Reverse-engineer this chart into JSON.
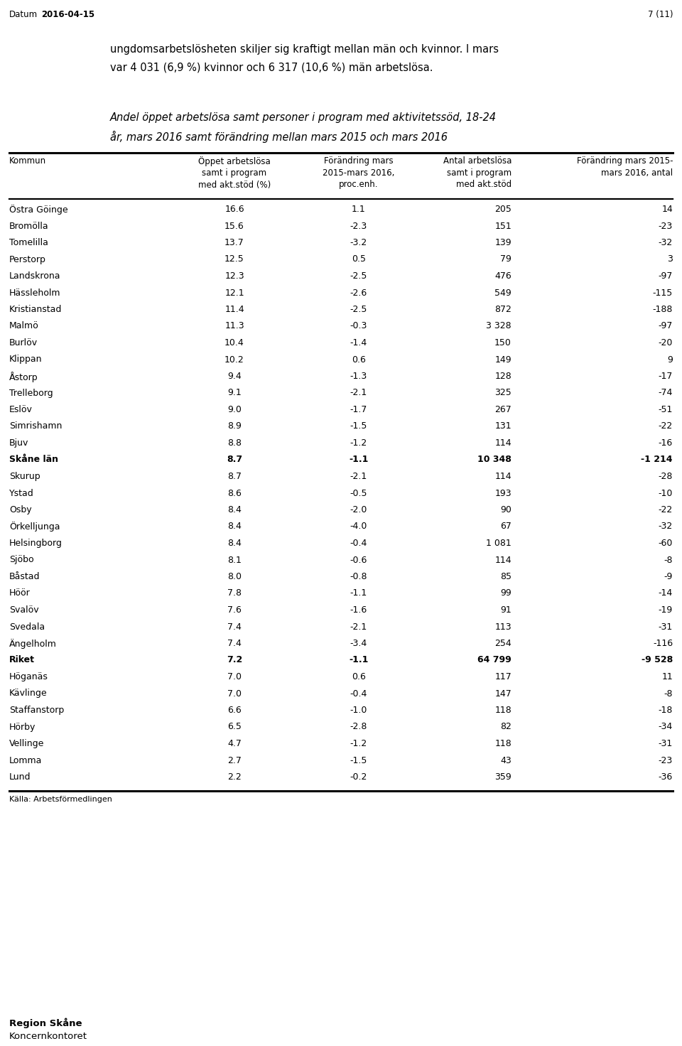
{
  "date_label": "Datum",
  "date_value": "2016-04-15",
  "page_number": "7 (11)",
  "intro_text_line1": "ungdomsarbetslösheten skiljer sig kraftigt mellan män och kvinnor. I mars",
  "intro_text_line2": "var 4 031 (6,9 %) kvinnor och 6 317 (10,6 %) män arbetslösa.",
  "table_title_line1": "Andel öppet arbetslösa samt personer i program med aktivitetssöd, 18-24",
  "table_title_line2": "år, mars 2016 samt förändring mellan mars 2015 och mars 2016",
  "col0_header": "Kommun",
  "col1_header": "Öppet arbetslösa\nsamt i program\nmed akt.stöd (%)",
  "col2_header": "Förändring mars\n2015-mars 2016,\nproc.enh.",
  "col3_header": "Antal arbetslösa\nsamt i program\nmed akt.stöd",
  "col4_header": "Förändring mars 2015-\nmars 2016, antal",
  "rows": [
    {
      "kommun": "Östra Göinge",
      "stod": "16.6",
      "fp": "1.1",
      "antal": "205",
      "fa": "14",
      "bold": false
    },
    {
      "kommun": "Bromölla",
      "stod": "15.6",
      "fp": "-2.3",
      "antal": "151",
      "fa": "-23",
      "bold": false
    },
    {
      "kommun": "Tomelilla",
      "stod": "13.7",
      "fp": "-3.2",
      "antal": "139",
      "fa": "-32",
      "bold": false
    },
    {
      "kommun": "Perstorp",
      "stod": "12.5",
      "fp": "0.5",
      "antal": "79",
      "fa": "3",
      "bold": false
    },
    {
      "kommun": "Landskrona",
      "stod": "12.3",
      "fp": "-2.5",
      "antal": "476",
      "fa": "-97",
      "bold": false
    },
    {
      "kommun": "Hässleholm",
      "stod": "12.1",
      "fp": "-2.6",
      "antal": "549",
      "fa": "-115",
      "bold": false
    },
    {
      "kommun": "Kristianstad",
      "stod": "11.4",
      "fp": "-2.5",
      "antal": "872",
      "fa": "-188",
      "bold": false
    },
    {
      "kommun": "Malmö",
      "stod": "11.3",
      "fp": "-0.3",
      "antal": "3 328",
      "fa": "-97",
      "bold": false
    },
    {
      "kommun": "Burlöv",
      "stod": "10.4",
      "fp": "-1.4",
      "antal": "150",
      "fa": "-20",
      "bold": false
    },
    {
      "kommun": "Klippan",
      "stod": "10.2",
      "fp": "0.6",
      "antal": "149",
      "fa": "9",
      "bold": false
    },
    {
      "kommun": "Åstorp",
      "stod": "9.4",
      "fp": "-1.3",
      "antal": "128",
      "fa": "-17",
      "bold": false
    },
    {
      "kommun": "Trelleborg",
      "stod": "9.1",
      "fp": "-2.1",
      "antal": "325",
      "fa": "-74",
      "bold": false
    },
    {
      "kommun": "Eslöv",
      "stod": "9.0",
      "fp": "-1.7",
      "antal": "267",
      "fa": "-51",
      "bold": false
    },
    {
      "kommun": "Simrishamn",
      "stod": "8.9",
      "fp": "-1.5",
      "antal": "131",
      "fa": "-22",
      "bold": false
    },
    {
      "kommun": "Bjuv",
      "stod": "8.8",
      "fp": "-1.2",
      "antal": "114",
      "fa": "-16",
      "bold": false
    },
    {
      "kommun": "Skåne län",
      "stod": "8.7",
      "fp": "-1.1",
      "antal": "10 348",
      "fa": "-1 214",
      "bold": true
    },
    {
      "kommun": "Skurup",
      "stod": "8.7",
      "fp": "-2.1",
      "antal": "114",
      "fa": "-28",
      "bold": false
    },
    {
      "kommun": "Ystad",
      "stod": "8.6",
      "fp": "-0.5",
      "antal": "193",
      "fa": "-10",
      "bold": false
    },
    {
      "kommun": "Osby",
      "stod": "8.4",
      "fp": "-2.0",
      "antal": "90",
      "fa": "-22",
      "bold": false
    },
    {
      "kommun": "Örkelljunga",
      "stod": "8.4",
      "fp": "-4.0",
      "antal": "67",
      "fa": "-32",
      "bold": false
    },
    {
      "kommun": "Helsingborg",
      "stod": "8.4",
      "fp": "-0.4",
      "antal": "1 081",
      "fa": "-60",
      "bold": false
    },
    {
      "kommun": "Sjöbo",
      "stod": "8.1",
      "fp": "-0.6",
      "antal": "114",
      "fa": "-8",
      "bold": false
    },
    {
      "kommun": "Båstad",
      "stod": "8.0",
      "fp": "-0.8",
      "antal": "85",
      "fa": "-9",
      "bold": false
    },
    {
      "kommun": "Höör",
      "stod": "7.8",
      "fp": "-1.1",
      "antal": "99",
      "fa": "-14",
      "bold": false
    },
    {
      "kommun": "Svalöv",
      "stod": "7.6",
      "fp": "-1.6",
      "antal": "91",
      "fa": "-19",
      "bold": false
    },
    {
      "kommun": "Svedala",
      "stod": "7.4",
      "fp": "-2.1",
      "antal": "113",
      "fa": "-31",
      "bold": false
    },
    {
      "kommun": "Ängelholm",
      "stod": "7.4",
      "fp": "-3.4",
      "antal": "254",
      "fa": "-116",
      "bold": false
    },
    {
      "kommun": "Riket",
      "stod": "7.2",
      "fp": "-1.1",
      "antal": "64 799",
      "fa": "-9 528",
      "bold": true
    },
    {
      "kommun": "Höganäs",
      "stod": "7.0",
      "fp": "0.6",
      "antal": "117",
      "fa": "11",
      "bold": false
    },
    {
      "kommun": "Kävlinge",
      "stod": "7.0",
      "fp": "-0.4",
      "antal": "147",
      "fa": "-8",
      "bold": false
    },
    {
      "kommun": "Staffanstorp",
      "stod": "6.6",
      "fp": "-1.0",
      "antal": "118",
      "fa": "-18",
      "bold": false
    },
    {
      "kommun": "Hörby",
      "stod": "6.5",
      "fp": "-2.8",
      "antal": "82",
      "fa": "-34",
      "bold": false
    },
    {
      "kommun": "Vellinge",
      "stod": "4.7",
      "fp": "-1.2",
      "antal": "118",
      "fa": "-31",
      "bold": false
    },
    {
      "kommun": "Lomma",
      "stod": "2.7",
      "fp": "-1.5",
      "antal": "43",
      "fa": "-23",
      "bold": false
    },
    {
      "kommun": "Lund",
      "stod": "2.2",
      "fp": "-0.2",
      "antal": "359",
      "fa": "-36",
      "bold": false
    }
  ],
  "footer_source": "Källa: Arbetsförmedlingen",
  "footer_org1": "Region Skåne",
  "footer_org2": "Koncernkontoret",
  "bg_color": "#ffffff",
  "text_color": "#000000"
}
